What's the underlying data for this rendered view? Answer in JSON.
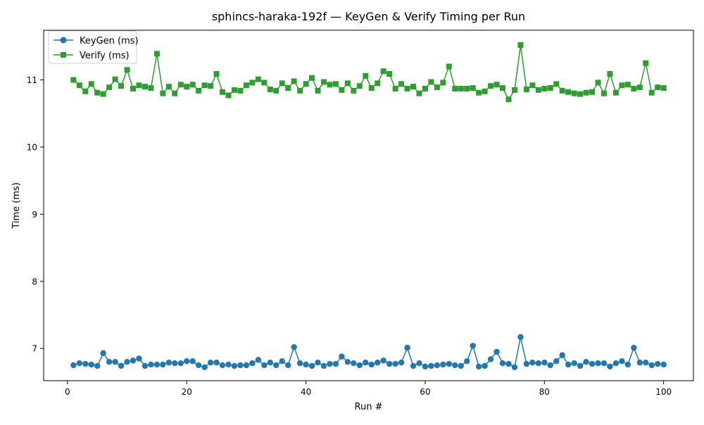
{
  "chart_data": {
    "type": "line",
    "title": "sphincs-haraka-192f — KeyGen & Verify Timing per Run",
    "xlabel": "Run #",
    "ylabel": "Time (ms)",
    "xlim": [
      -4.0,
      105.0
    ],
    "ylim": [
      6.52,
      11.74
    ],
    "x_ticks": [
      0,
      20,
      40,
      60,
      80,
      100
    ],
    "y_ticks": [
      7,
      8,
      9,
      10,
      11
    ],
    "grid": false,
    "legend_position": "top-left",
    "x": [
      1,
      2,
      3,
      4,
      5,
      6,
      7,
      8,
      9,
      10,
      11,
      12,
      13,
      14,
      15,
      16,
      17,
      18,
      19,
      20,
      21,
      22,
      23,
      24,
      25,
      26,
      27,
      28,
      29,
      30,
      31,
      32,
      33,
      34,
      35,
      36,
      37,
      38,
      39,
      40,
      41,
      42,
      43,
      44,
      45,
      46,
      47,
      48,
      49,
      50,
      51,
      52,
      53,
      54,
      55,
      56,
      57,
      58,
      59,
      60,
      61,
      62,
      63,
      64,
      65,
      66,
      67,
      68,
      69,
      70,
      71,
      72,
      73,
      74,
      75,
      76,
      77,
      78,
      79,
      80,
      81,
      82,
      83,
      84,
      85,
      86,
      87,
      88,
      89,
      90,
      91,
      92,
      93,
      94,
      95,
      96,
      97,
      98,
      99,
      100
    ],
    "series": [
      {
        "name": "KeyGen (ms)",
        "color": "#1f77b4",
        "marker": "circle",
        "values": [
          6.75,
          6.78,
          6.77,
          6.76,
          6.74,
          6.93,
          6.8,
          6.8,
          6.74,
          6.8,
          6.82,
          6.85,
          6.74,
          6.76,
          6.76,
          6.76,
          6.79,
          6.78,
          6.78,
          6.81,
          6.81,
          6.75,
          6.72,
          6.79,
          6.79,
          6.75,
          6.76,
          6.74,
          6.75,
          6.75,
          6.78,
          6.83,
          6.75,
          6.79,
          6.75,
          6.81,
          6.75,
          7.02,
          6.78,
          6.76,
          6.74,
          6.79,
          6.74,
          6.77,
          6.77,
          6.88,
          6.8,
          6.78,
          6.75,
          6.79,
          6.76,
          6.79,
          6.82,
          6.77,
          6.77,
          6.79,
          7.01,
          6.74,
          6.78,
          6.73,
          6.74,
          6.75,
          6.76,
          6.77,
          6.75,
          6.74,
          6.81,
          7.04,
          6.73,
          6.74,
          6.84,
          6.95,
          6.78,
          6.77,
          6.72,
          7.17,
          6.77,
          6.79,
          6.78,
          6.79,
          6.75,
          6.81,
          6.9,
          6.76,
          6.78,
          6.74,
          6.8,
          6.77,
          6.78,
          6.78,
          6.73,
          6.78,
          6.81,
          6.76,
          7.01,
          6.79,
          6.79,
          6.75,
          6.77,
          6.76
        ]
      },
      {
        "name": "Verify (ms)",
        "color": "#2ca02c",
        "marker": "square",
        "values": [
          11.0,
          10.92,
          10.83,
          10.94,
          10.81,
          10.79,
          10.89,
          11.01,
          10.91,
          11.15,
          10.87,
          10.92,
          10.9,
          10.88,
          11.39,
          10.8,
          10.9,
          10.8,
          10.93,
          10.9,
          10.93,
          10.84,
          10.92,
          10.91,
          11.09,
          10.82,
          10.77,
          10.85,
          10.84,
          10.92,
          10.96,
          11.01,
          10.96,
          10.86,
          10.84,
          10.95,
          10.88,
          10.98,
          10.84,
          10.94,
          11.03,
          10.84,
          10.97,
          10.93,
          10.94,
          10.85,
          10.95,
          10.84,
          10.91,
          11.06,
          10.88,
          10.95,
          11.13,
          11.09,
          10.87,
          10.94,
          10.87,
          10.9,
          10.8,
          10.87,
          10.97,
          10.89,
          10.96,
          11.2,
          10.87,
          10.87,
          10.87,
          10.88,
          10.81,
          10.83,
          10.91,
          10.93,
          10.88,
          10.71,
          10.85,
          11.52,
          10.86,
          10.92,
          10.85,
          10.87,
          10.88,
          10.94,
          10.84,
          10.82,
          10.8,
          10.79,
          10.81,
          10.82,
          10.96,
          10.8,
          11.09,
          10.81,
          10.92,
          10.93,
          10.87,
          10.89,
          11.25,
          10.81,
          10.89,
          10.88
        ]
      }
    ]
  }
}
